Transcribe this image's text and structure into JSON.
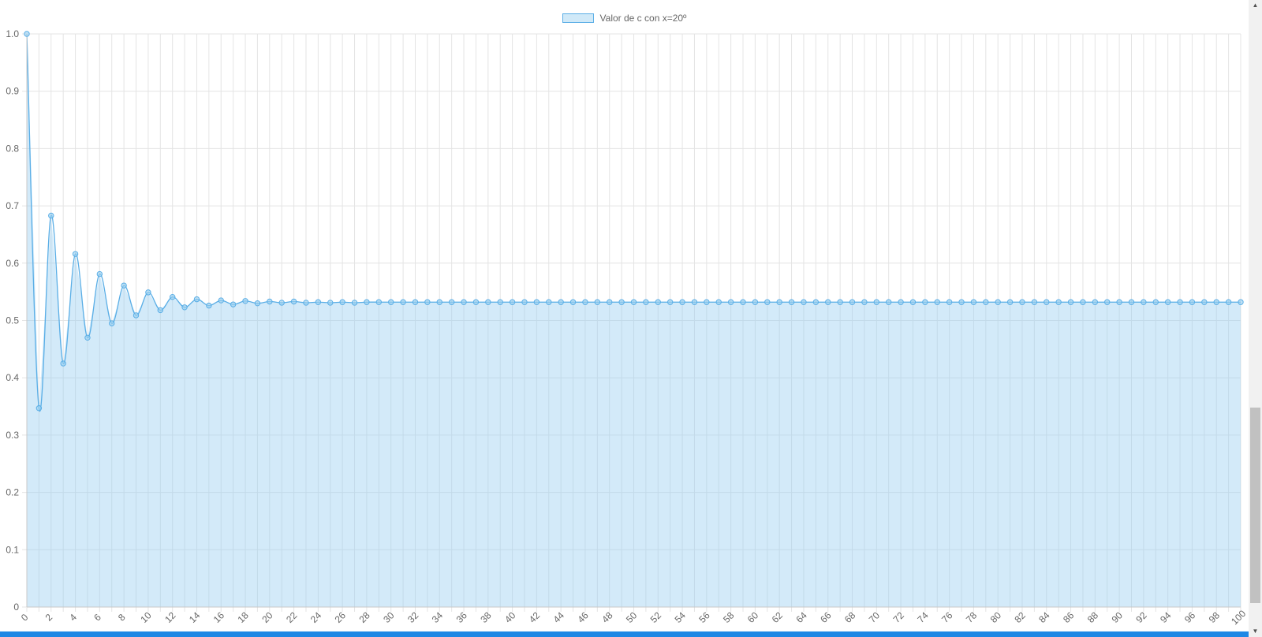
{
  "legend": {
    "label": "Valor de c con x=20º"
  },
  "scroll_icons": {
    "up": "▲",
    "down": "▼"
  },
  "colors": {
    "line": "#5aaee6",
    "fill": "rgba(151, 206, 240, 0.42)",
    "grid": "#e4e4e4",
    "axis_text": "#666666",
    "bottom_bar": "#1e88e5"
  },
  "chart_data": {
    "type": "line",
    "fill": true,
    "grid": true,
    "legend_position": "top-center",
    "xlim": [
      0,
      100
    ],
    "ylim": [
      0,
      1.0
    ],
    "y_ticks": [
      "0",
      "0.1",
      "0.2",
      "0.3",
      "0.4",
      "0.5",
      "0.6",
      "0.7",
      "0.8",
      "0.9",
      "1.0"
    ],
    "x_tick_step": 2,
    "series": [
      {
        "name": "Valor de c con x=20º",
        "x": [
          0,
          1,
          2,
          3,
          4,
          5,
          6,
          7,
          8,
          9,
          10,
          11,
          12,
          13,
          14,
          15,
          16,
          17,
          18,
          19,
          20,
          21,
          22,
          23,
          24,
          25,
          26,
          27,
          28,
          29,
          30,
          31,
          32,
          33,
          34,
          35,
          36,
          37,
          38,
          39,
          40,
          41,
          42,
          43,
          44,
          45,
          46,
          47,
          48,
          49,
          50,
          51,
          52,
          53,
          54,
          55,
          56,
          57,
          58,
          59,
          60,
          61,
          62,
          63,
          64,
          65,
          66,
          67,
          68,
          69,
          70,
          71,
          72,
          73,
          74,
          75,
          76,
          77,
          78,
          79,
          80,
          81,
          82,
          83,
          84,
          85,
          86,
          87,
          88,
          89,
          90,
          91,
          92,
          93,
          94,
          95,
          96,
          97,
          98,
          99,
          100
        ],
        "values": [
          1.0,
          0.347,
          0.683,
          0.425,
          0.616,
          0.47,
          0.581,
          0.495,
          0.561,
          0.509,
          0.549,
          0.518,
          0.541,
          0.523,
          0.537,
          0.526,
          0.535,
          0.528,
          0.534,
          0.53,
          0.533,
          0.531,
          0.533,
          0.531,
          0.532,
          0.531,
          0.532,
          0.531,
          0.532,
          0.532,
          0.532,
          0.532,
          0.532,
          0.532,
          0.532,
          0.532,
          0.532,
          0.532,
          0.532,
          0.532,
          0.532,
          0.532,
          0.532,
          0.532,
          0.532,
          0.532,
          0.532,
          0.532,
          0.532,
          0.532,
          0.532,
          0.532,
          0.532,
          0.532,
          0.532,
          0.532,
          0.532,
          0.532,
          0.532,
          0.532,
          0.532,
          0.532,
          0.532,
          0.532,
          0.532,
          0.532,
          0.532,
          0.532,
          0.532,
          0.532,
          0.532,
          0.532,
          0.532,
          0.532,
          0.532,
          0.532,
          0.532,
          0.532,
          0.532,
          0.532,
          0.532,
          0.532,
          0.532,
          0.532,
          0.532,
          0.532,
          0.532,
          0.532,
          0.532,
          0.532,
          0.532,
          0.532,
          0.532,
          0.532,
          0.532,
          0.532,
          0.532,
          0.532,
          0.532,
          0.532,
          0.532
        ]
      }
    ]
  }
}
